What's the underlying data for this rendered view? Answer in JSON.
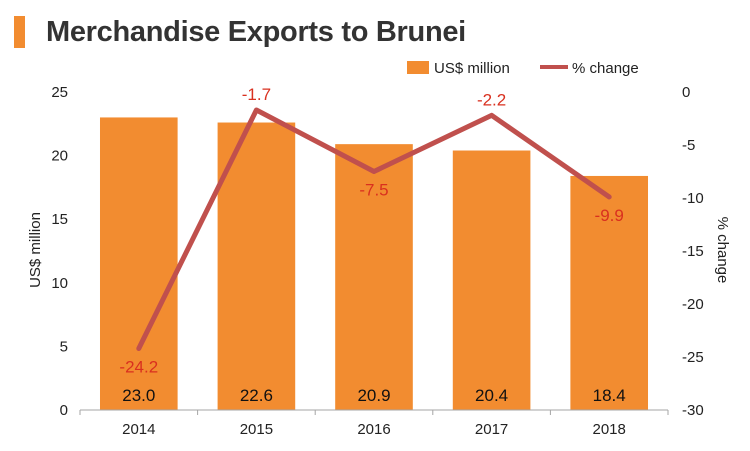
{
  "title": "Merchandise Exports to Brunei",
  "colors": {
    "bar": "#F28C30",
    "line": "#C0504D",
    "pct_label": "#D9301F",
    "accent": "#F28C30"
  },
  "chart_data": {
    "type": "bar",
    "categories": [
      "2014",
      "2015",
      "2016",
      "2017",
      "2018"
    ],
    "series": [
      {
        "name": "US$ million",
        "type": "bar",
        "axis": "left",
        "values": [
          23.0,
          22.6,
          20.9,
          20.4,
          18.4
        ],
        "labels": [
          "23.0",
          "22.6",
          "20.9",
          "20.4",
          "18.4"
        ]
      },
      {
        "name": "% change",
        "type": "line",
        "axis": "right",
        "values": [
          -24.2,
          -1.7,
          -7.5,
          -2.2,
          -9.9
        ],
        "labels": [
          "-24.2",
          "-1.7",
          "-7.5",
          "-2.2",
          "-9.9"
        ]
      }
    ],
    "ylabel": "US$ million",
    "y2label": "% change",
    "ylim": [
      0,
      25
    ],
    "y2lim": [
      -30,
      0
    ],
    "yticks": [
      "0",
      "5",
      "10",
      "15",
      "20",
      "25"
    ],
    "y2ticks": [
      "0",
      "-5",
      "-10",
      "-15",
      "-20",
      "-25",
      "-30"
    ],
    "legend_position": "top-right"
  }
}
